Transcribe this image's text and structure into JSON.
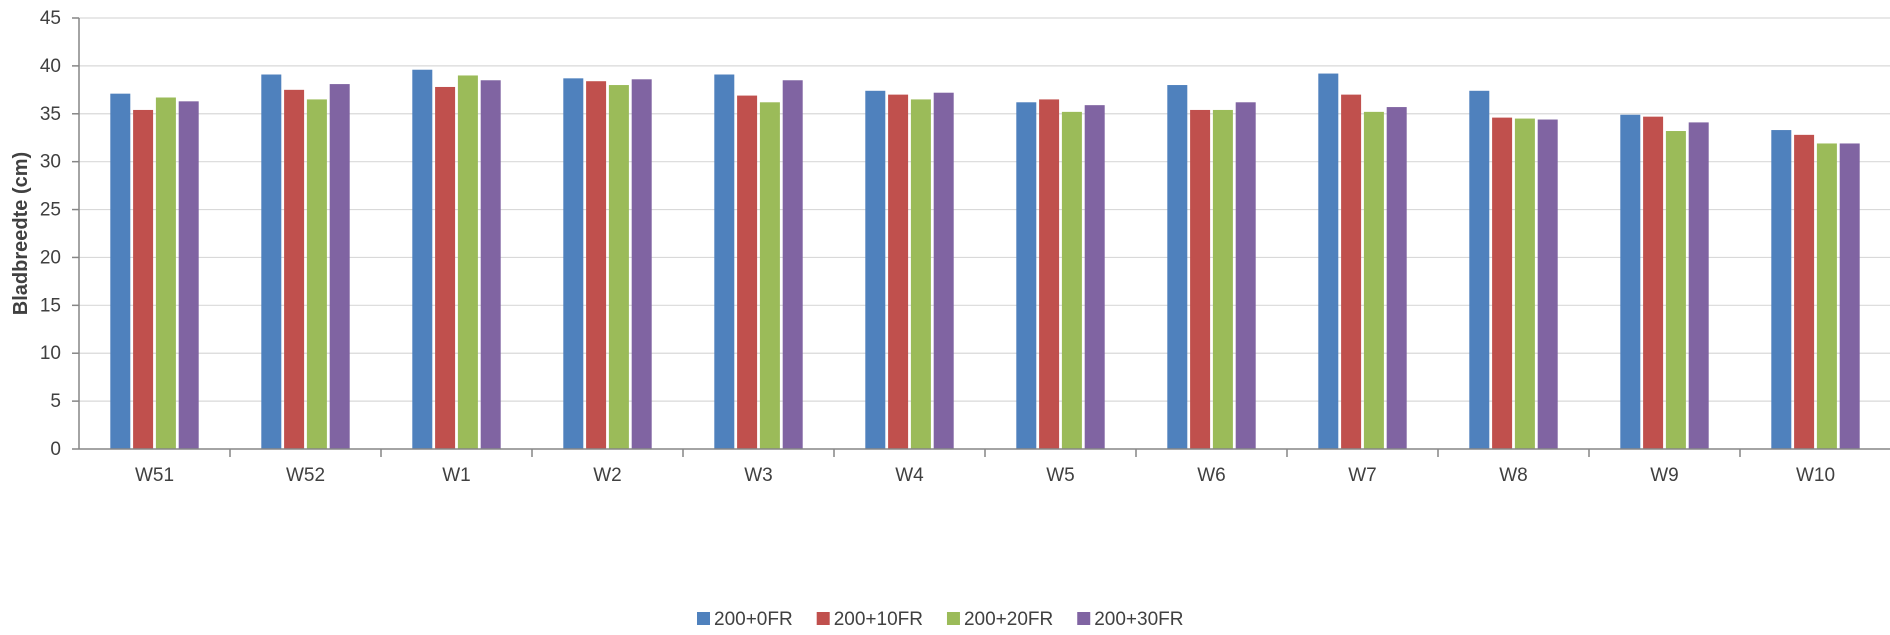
{
  "chart_data": {
    "type": "bar",
    "title": "",
    "xlabel": "",
    "ylabel": "Bladbreedte (cm)",
    "ylim": [
      0,
      45
    ],
    "yticks": [
      0,
      5,
      10,
      15,
      20,
      25,
      30,
      35,
      40,
      45
    ],
    "grid": true,
    "legend_position": "bottom",
    "categories": [
      "W51",
      "W52",
      "W1",
      "W2",
      "W3",
      "W4",
      "W5",
      "W6",
      "W7",
      "W8",
      "W9",
      "W10"
    ],
    "series": [
      {
        "name": "200+0FR",
        "color": "#4F81BD",
        "values": [
          37.1,
          39.1,
          39.6,
          38.7,
          39.1,
          37.4,
          36.2,
          38.0,
          39.2,
          37.4,
          34.9,
          33.3
        ]
      },
      {
        "name": "200+10FR",
        "color": "#C0504D",
        "values": [
          35.4,
          37.5,
          37.8,
          38.4,
          36.9,
          37.0,
          36.5,
          35.4,
          37.0,
          34.6,
          34.7,
          32.8
        ]
      },
      {
        "name": "200+20FR",
        "color": "#9BBB59",
        "values": [
          36.7,
          36.5,
          39.0,
          38.0,
          36.2,
          36.5,
          35.2,
          35.4,
          35.2,
          34.5,
          33.2,
          31.9
        ]
      },
      {
        "name": "200+30FR",
        "color": "#8064A2",
        "values": [
          36.3,
          38.1,
          38.5,
          38.6,
          38.5,
          37.2,
          35.9,
          36.2,
          35.7,
          34.4,
          34.1,
          31.9
        ]
      }
    ]
  }
}
